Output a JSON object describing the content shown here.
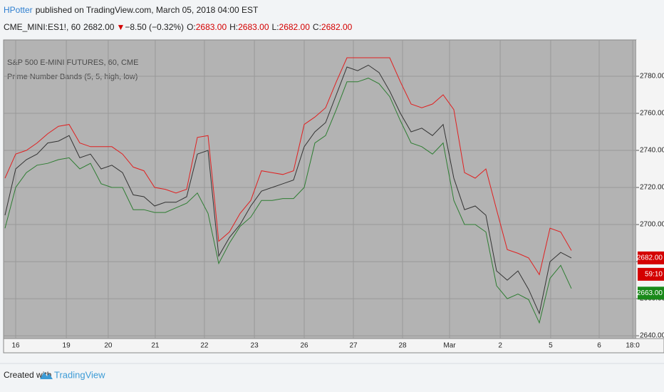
{
  "header": {
    "author": "HPotter",
    "published": "published on TradingView.com, March 05, 2018 04:00 EST",
    "symbol": "CME_MINI:ES1!, 60",
    "last": "2682.00",
    "arrow": "▼",
    "change": "−8.50 (−0.32%)",
    "ohlc": [
      {
        "label": "O:",
        "value": "2683.00"
      },
      {
        "label": "H:",
        "value": "2683.00"
      },
      {
        "label": "L:",
        "value": "2682.00"
      },
      {
        "label": "C:",
        "value": "2682.00"
      }
    ]
  },
  "chart_data": {
    "type": "line",
    "title": "S&P 500 E-MINI FUTURES, 60, CME",
    "subtitle": "Prime Number Bands (5, 5, high, low)",
    "x": [
      -5,
      0,
      5,
      10,
      15,
      20,
      25,
      30,
      35,
      40,
      45,
      50,
      55,
      60,
      65,
      70,
      75,
      80,
      85,
      90,
      95,
      100,
      105,
      110,
      115,
      120,
      125,
      130,
      135,
      140,
      145,
      150,
      155,
      160,
      165,
      170,
      175,
      180,
      185,
      190,
      195,
      200,
      205,
      210,
      215,
      220,
      225,
      230,
      235,
      240,
      245,
      250,
      255,
      260
    ],
    "xlim": [
      -5.67,
      290.33
    ],
    "xticks": [
      {
        "value": 0,
        "label": "16"
      },
      {
        "value": 23.7,
        "label": "19"
      },
      {
        "value": 43.3,
        "label": "20"
      },
      {
        "value": 65.3,
        "label": "21"
      },
      {
        "value": 88.3,
        "label": "22"
      },
      {
        "value": 111.7,
        "label": "23"
      },
      {
        "value": 135,
        "label": "26"
      },
      {
        "value": 158,
        "label": "27"
      },
      {
        "value": 181,
        "label": "28"
      },
      {
        "value": 203,
        "label": "Mar"
      },
      {
        "value": 226.7,
        "label": "2"
      },
      {
        "value": 250.3,
        "label": "5"
      },
      {
        "value": 273,
        "label": "6"
      },
      {
        "value": 288.7,
        "label": "18:0"
      }
    ],
    "ylim": [
      2638.5,
      2799.6
    ],
    "yticks": [
      {
        "value": 2640,
        "label": "2640.00"
      },
      {
        "value": 2660,
        "label": "2660.00"
      },
      {
        "value": 2680,
        "label": "2680.00"
      },
      {
        "value": 2700,
        "label": "2700.00"
      },
      {
        "value": 2720,
        "label": "2720.00"
      },
      {
        "value": 2740,
        "label": "2740.00"
      },
      {
        "value": 2760,
        "label": "2760.00"
      },
      {
        "value": 2780,
        "label": "2780.00"
      }
    ],
    "grid": true,
    "series": [
      {
        "color": "#e02020",
        "values": [
          2725,
          2738,
          2740,
          2744,
          2749,
          2753,
          2754,
          2744,
          2742,
          2742,
          2742,
          2738,
          2731,
          2729,
          2720,
          2719,
          2717,
          2719,
          2747,
          2748,
          2691,
          2696,
          2706,
          2713,
          2729,
          2728,
          2727,
          2729,
          2754,
          2758,
          2763,
          2777,
          2790,
          2790,
          2790,
          2790,
          2790,
          2777,
          2765,
          2763,
          2765,
          2770,
          2762,
          2728,
          2725,
          2730,
          2708,
          2686.5,
          2684.5,
          2682,
          2673,
          2698,
          2696,
          2686
        ]
      },
      {
        "color": "#2e7d32",
        "values": [
          2698,
          2720,
          2728,
          2732,
          2733,
          2735,
          2736,
          2730,
          2733,
          2722,
          2720,
          2720,
          2708,
          2708,
          2706.5,
          2706.5,
          2709,
          2711.5,
          2717,
          2706,
          2679,
          2690,
          2699,
          2704,
          2713,
          2713,
          2714,
          2714,
          2720,
          2744,
          2748,
          2762,
          2777,
          2777,
          2779,
          2776,
          2769,
          2756,
          2744,
          2742,
          2738,
          2744,
          2713,
          2700,
          2700,
          2696,
          2667,
          2660,
          2662.5,
          2659.5,
          2647,
          2671,
          2678,
          2665.5
        ]
      },
      {
        "color": "#333333",
        "values": [
          2705,
          2730,
          2735,
          2738,
          2744,
          2745,
          2748,
          2736,
          2738,
          2730,
          2732,
          2728,
          2716,
          2715,
          2710,
          2712,
          2712,
          2715,
          2738,
          2740,
          2683,
          2693,
          2700,
          2710,
          2718,
          2720,
          2722,
          2724,
          2742,
          2750,
          2755,
          2770,
          2785,
          2783,
          2786,
          2782,
          2772,
          2760,
          2750,
          2752,
          2748,
          2754,
          2725,
          2708,
          2710,
          2705,
          2675,
          2670,
          2675,
          2665,
          2652,
          2680,
          2685,
          2682
        ]
      }
    ],
    "price_labels": [
      {
        "value": 2682,
        "label": "2682.00",
        "color": "#d40000"
      },
      {
        "label": "59:10",
        "color": "#d40000"
      },
      {
        "value": 2663,
        "label": "2663.00",
        "color": "#1a8a1a"
      }
    ]
  },
  "footer": {
    "created": "Created with",
    "brand": "TradingView"
  }
}
